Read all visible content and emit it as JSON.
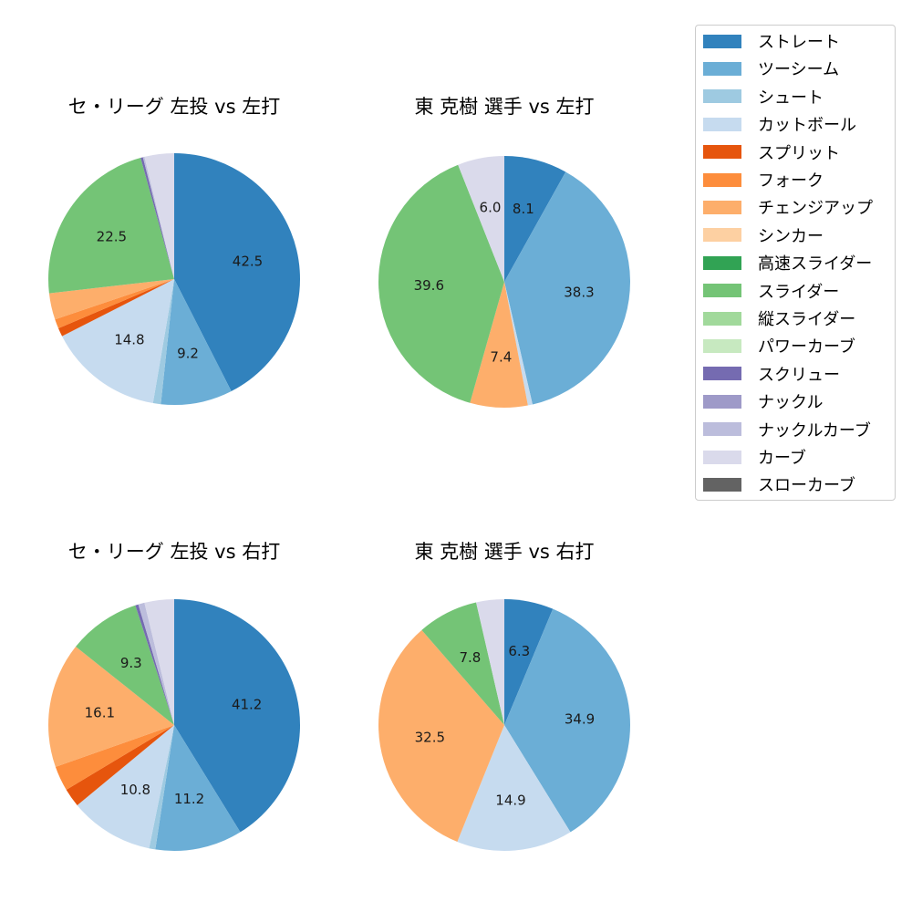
{
  "colors": {
    "ストレート": "#3182bd",
    "ツーシーム": "#6baed6",
    "シュート": "#9ecae1",
    "カットボール": "#c6dbef",
    "スプリット": "#e6550d",
    "フォーク": "#fd8d3c",
    "チェンジアップ": "#fdae6b",
    "シンカー": "#fdd0a2",
    "高速スライダー": "#31a354",
    "スライダー": "#74c476",
    "縦スライダー": "#a1d99b",
    "パワーカーブ": "#c7e9c0",
    "スクリュー": "#756bb1",
    "ナックル": "#9e9ac8",
    "ナックルカーブ": "#bcbddc",
    "カーブ": "#dadaeb",
    "スローカーブ": "#636363"
  },
  "legend": {
    "items": [
      "ストレート",
      "ツーシーム",
      "シュート",
      "カットボール",
      "スプリット",
      "フォーク",
      "チェンジアップ",
      "シンカー",
      "高速スライダー",
      "スライダー",
      "縦スライダー",
      "パワーカーブ",
      "スクリュー",
      "ナックル",
      "ナックルカーブ",
      "カーブ",
      "スローカーブ"
    ]
  },
  "chart_data": [
    {
      "type": "pie",
      "title": "セ・リーグ 左投 vs 左打",
      "labels": [
        "ストレート",
        "ツーシーム",
        "シュート",
        "カットボール",
        "スプリット",
        "フォーク",
        "チェンジアップ",
        "スライダー",
        "スクリュー",
        "ナックルカーブ",
        "カーブ"
      ],
      "values": [
        42.5,
        9.2,
        1.0,
        14.8,
        1.1,
        1.2,
        3.4,
        22.5,
        0.3,
        0.2,
        3.8
      ],
      "shown_labels": [
        "42.5",
        "9.2",
        "",
        "14.8",
        "",
        "",
        "",
        "22.5",
        "",
        "",
        ""
      ],
      "start_angle": 90,
      "direction": "clockwise"
    },
    {
      "type": "pie",
      "title": "東 克樹 選手 vs 左打",
      "labels": [
        "ストレート",
        "ツーシーム",
        "カットボール",
        "チェンジアップ",
        "スライダー",
        "カーブ"
      ],
      "values": [
        8.1,
        38.3,
        0.6,
        7.4,
        39.6,
        6.0
      ],
      "shown_labels": [
        "8.1",
        "38.3",
        "",
        "7.4",
        "39.6",
        "6.0"
      ],
      "start_angle": 90,
      "direction": "clockwise"
    },
    {
      "type": "pie",
      "title": "セ・リーグ 左投 vs 右打",
      "labels": [
        "ストレート",
        "ツーシーム",
        "シュート",
        "カットボール",
        "スプリット",
        "フォーク",
        "チェンジアップ",
        "スライダー",
        "スクリュー",
        "ナックルカーブ",
        "カーブ"
      ],
      "values": [
        41.2,
        11.2,
        0.8,
        10.8,
        2.4,
        3.2,
        16.1,
        9.3,
        0.4,
        0.8,
        3.8
      ],
      "shown_labels": [
        "41.2",
        "11.2",
        "",
        "10.8",
        "",
        "",
        "16.1",
        "9.3",
        "",
        "",
        ""
      ],
      "start_angle": 90,
      "direction": "clockwise"
    },
    {
      "type": "pie",
      "title": "東 克樹 選手 vs 右打",
      "labels": [
        "ストレート",
        "ツーシーム",
        "カットボール",
        "チェンジアップ",
        "スライダー",
        "カーブ"
      ],
      "values": [
        6.3,
        34.9,
        14.9,
        32.5,
        7.8,
        3.6
      ],
      "shown_labels": [
        "6.3",
        "34.9",
        "14.9",
        "32.5",
        "7.8",
        ""
      ],
      "start_angle": 90,
      "direction": "clockwise"
    }
  ]
}
